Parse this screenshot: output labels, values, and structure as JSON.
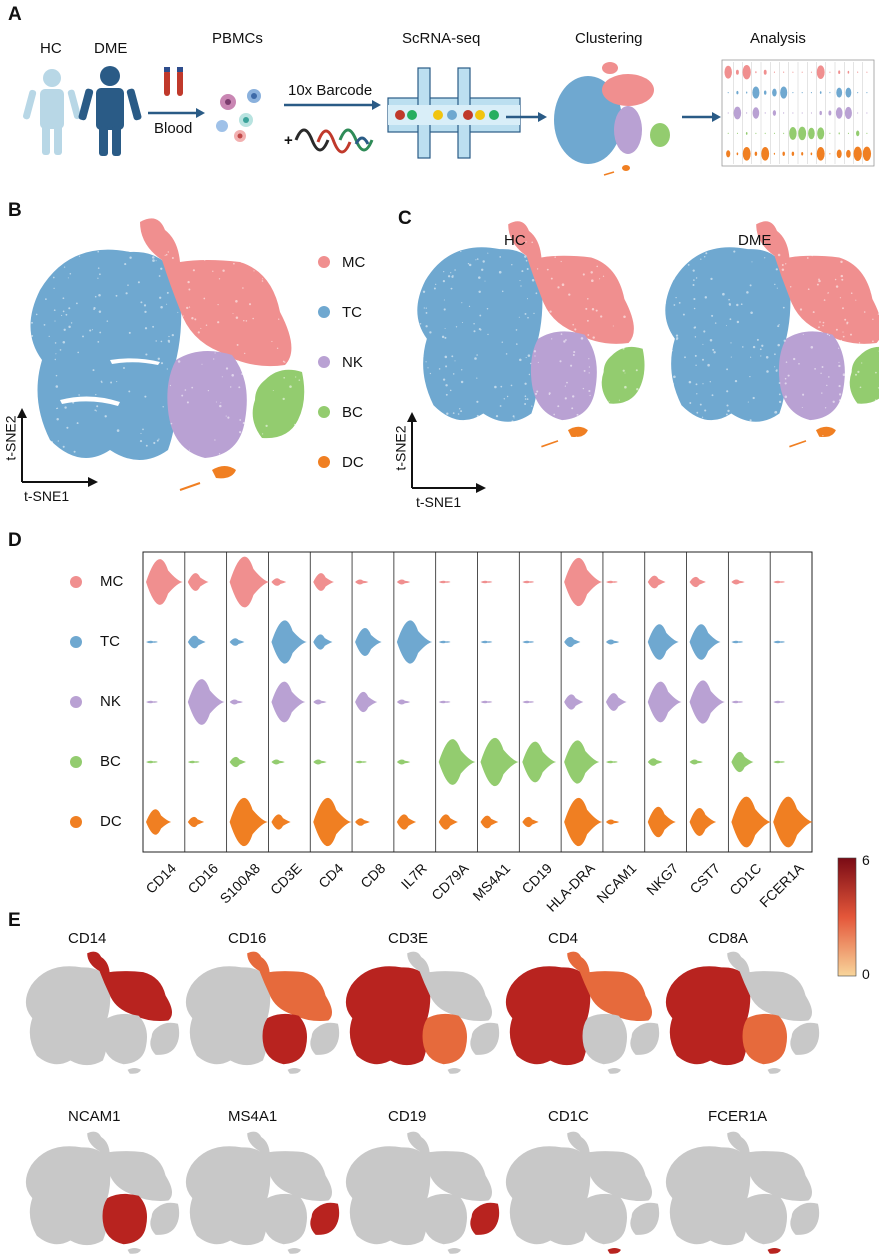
{
  "panels": {
    "a": {
      "letter": "A",
      "hc_label": "HC",
      "dme_label": "DME",
      "blood_label": "Blood",
      "pbmcs_label": "PBMCs",
      "barcode_label": "10x Barcode",
      "plus_sign": "+",
      "scrnaseq_label": "ScRNA-seq",
      "clustering_label": "Clustering",
      "analysis_label": "Analysis"
    },
    "b": {
      "letter": "B",
      "axis_y": "t-SNE2",
      "axis_x": "t-SNE1"
    },
    "c": {
      "letter": "C",
      "hc_title": "HC",
      "dme_title": "DME",
      "axis_y": "t-SNE2",
      "axis_x": "t-SNE1"
    },
    "d": {
      "letter": "D"
    },
    "e": {
      "letter": "E"
    }
  },
  "legend": [
    {
      "label": "MC",
      "color": "#f08f8f"
    },
    {
      "label": "TC",
      "color": "#6fa8d0"
    },
    {
      "label": "NK",
      "color": "#b9a1d3"
    },
    {
      "label": "BC",
      "color": "#93cc6f"
    },
    {
      "label": "DC",
      "color": "#f07f22"
    }
  ],
  "chart_data": {
    "type": "violin",
    "title": "",
    "cell_types": [
      "MC",
      "TC",
      "NK",
      "BC",
      "DC"
    ],
    "genes": [
      "CD14",
      "CD16",
      "S100A8",
      "CD3E",
      "CD4",
      "CD8",
      "IL7R",
      "CD79A",
      "MS4A1",
      "CD19",
      "HLA-DRA",
      "NCAM1",
      "NKG7",
      "CST7",
      "CD1C",
      "FCER1A"
    ],
    "relative_expression": [
      [
        0.9,
        0.35,
        1.0,
        0.15,
        0.35,
        0.1,
        0.1,
        0.05,
        0.05,
        0.05,
        0.95,
        0.05,
        0.25,
        0.2,
        0.1,
        0.05
      ],
      [
        0.05,
        0.25,
        0.15,
        0.85,
        0.3,
        0.55,
        0.85,
        0.05,
        0.05,
        0.05,
        0.2,
        0.1,
        0.7,
        0.7,
        0.05,
        0.05
      ],
      [
        0.05,
        0.9,
        0.1,
        0.8,
        0.1,
        0.4,
        0.1,
        0.05,
        0.05,
        0.05,
        0.3,
        0.35,
        0.8,
        0.85,
        0.05,
        0.05
      ],
      [
        0.05,
        0.05,
        0.2,
        0.1,
        0.1,
        0.05,
        0.1,
        0.9,
        0.95,
        0.8,
        0.85,
        0.05,
        0.15,
        0.1,
        0.4,
        0.05
      ],
      [
        0.5,
        0.2,
        0.95,
        0.3,
        0.95,
        0.15,
        0.3,
        0.3,
        0.25,
        0.2,
        0.95,
        0.1,
        0.6,
        0.55,
        1.0,
        1.0
      ]
    ],
    "feature_genes": [
      "CD14",
      "CD16",
      "CD3E",
      "CD4",
      "CD8A",
      "NCAM1",
      "MS4A1",
      "CD19",
      "CD1C",
      "FCER1A"
    ],
    "feature_highlight": [
      [
        "MC"
      ],
      [
        "NK",
        "MC"
      ],
      [
        "TC",
        "NK"
      ],
      [
        "TC",
        "MC"
      ],
      [
        "TC",
        "NK"
      ],
      [
        "NK"
      ],
      [
        "BC"
      ],
      [
        "BC"
      ],
      [
        "DC"
      ],
      [
        "DC"
      ]
    ],
    "colorbar": {
      "min_label": "0",
      "max_label": "6",
      "min": 0,
      "max": 6
    }
  }
}
